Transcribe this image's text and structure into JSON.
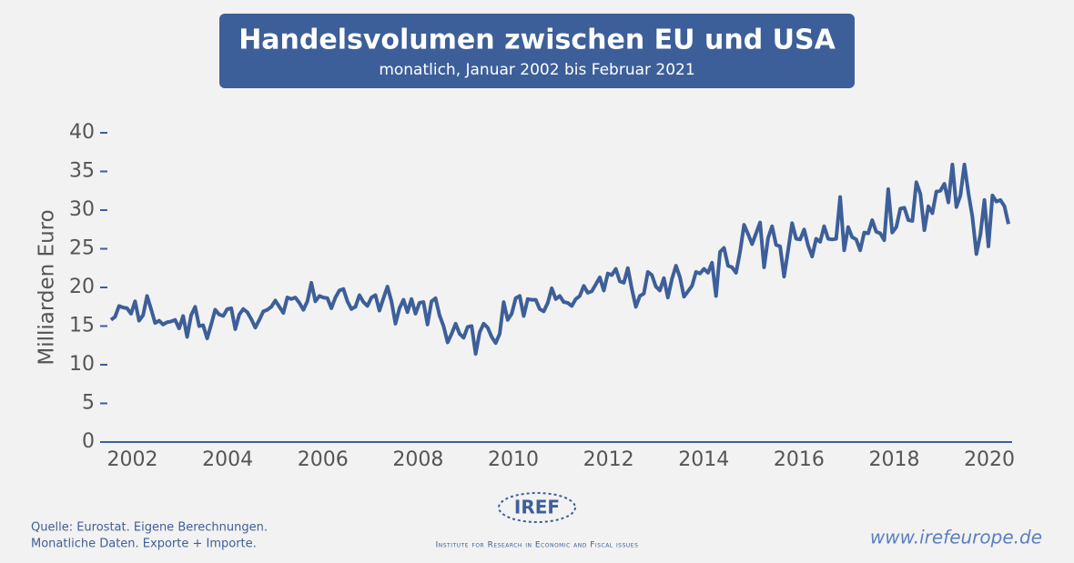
{
  "chart_data": {
    "type": "line",
    "title": "Handelsvolumen zwischen EU und USA",
    "subtitle": "monatlich, Januar 2002 bis Februar 2021",
    "y_label": "Milliarden Euro",
    "color": "#3d5f99",
    "xlim": [
      2001.55,
      2020.4
    ],
    "xticks": [
      2002,
      2004,
      2006,
      2008,
      2010,
      2012,
      2014,
      2016,
      2018,
      2020
    ],
    "ylim": [
      0,
      40
    ],
    "yticks": [
      0,
      5,
      10,
      15,
      20,
      25,
      30,
      35,
      40
    ],
    "values": [
      15.8,
      16.2,
      17.6,
      17.4,
      17.3,
      16.6,
      18.2,
      15.7,
      16.4,
      18.9,
      17.2,
      15.4,
      15.7,
      15.2,
      15.5,
      15.6,
      15.8,
      14.7,
      16.3,
      13.6,
      16.4,
      17.5,
      15.0,
      15.1,
      13.4,
      15.2,
      17.1,
      16.5,
      16.3,
      17.2,
      17.3,
      14.6,
      16.5,
      17.2,
      16.8,
      15.9,
      14.8,
      15.8,
      16.9,
      17.1,
      17.5,
      18.3,
      17.5,
      16.7,
      18.7,
      18.5,
      18.7,
      18.0,
      17.1,
      18.2,
      20.6,
      18.2,
      18.9,
      18.7,
      18.6,
      17.3,
      18.7,
      19.6,
      19.8,
      18.2,
      17.2,
      17.5,
      19.0,
      18.1,
      17.6,
      18.7,
      19.0,
      17.0,
      18.6,
      20.1,
      18.2,
      15.3,
      17.3,
      18.4,
      16.8,
      18.5,
      16.6,
      18.0,
      18.1,
      15.2,
      18.2,
      18.6,
      16.4,
      15.0,
      12.9,
      14.0,
      15.3,
      14.0,
      13.5,
      14.9,
      15.0,
      11.4,
      14.2,
      15.3,
      14.8,
      13.6,
      12.8,
      14.0,
      18.1,
      15.8,
      16.6,
      18.6,
      18.9,
      16.3,
      18.5,
      18.4,
      18.4,
      17.2,
      16.9,
      18.0,
      19.9,
      18.5,
      18.9,
      18.1,
      18.0,
      17.6,
      18.5,
      18.9,
      20.2,
      19.3,
      19.5,
      20.4,
      21.3,
      19.6,
      21.8,
      21.6,
      22.4,
      20.8,
      20.6,
      22.5,
      19.8,
      17.5,
      18.9,
      19.2,
      22.0,
      21.6,
      20.1,
      19.6,
      21.2,
      18.7,
      21.1,
      22.8,
      21.3,
      18.8,
      19.5,
      20.2,
      22.0,
      21.8,
      22.4,
      21.9,
      23.2,
      18.9,
      24.6,
      25.1,
      22.8,
      22.6,
      21.9,
      24.6,
      28.1,
      26.9,
      25.6,
      27.0,
      28.4,
      22.6,
      26.4,
      27.9,
      25.5,
      25.3,
      21.4,
      24.8,
      28.3,
      26.3,
      26.2,
      27.5,
      25.4,
      24.0,
      26.3,
      25.9,
      27.9,
      26.3,
      26.2,
      26.3,
      31.7,
      24.8,
      27.8,
      26.5,
      26.2,
      24.8,
      27.1,
      27.0,
      28.7,
      27.2,
      27.0,
      26.1,
      32.7,
      27.1,
      27.8,
      30.2,
      30.3,
      28.7,
      28.6,
      33.6,
      32.1,
      27.4,
      30.5,
      29.6,
      32.4,
      32.5,
      33.4,
      31.0,
      35.9,
      30.4,
      31.9,
      35.9,
      32.2,
      29.1,
      24.3,
      26.9,
      31.3,
      25.3,
      31.9,
      31.1,
      31.3,
      30.5,
      28.2
    ]
  },
  "footer": {
    "source_line1": "Quelle: Eurostat. Eigene Berechnungen.",
    "source_line2": "Monatliche Daten. Exporte + Importe.",
    "logo": "IREF",
    "institute": "Institute for Research in Economic and Fiscal issues",
    "url": "www.irefeurope.de"
  }
}
